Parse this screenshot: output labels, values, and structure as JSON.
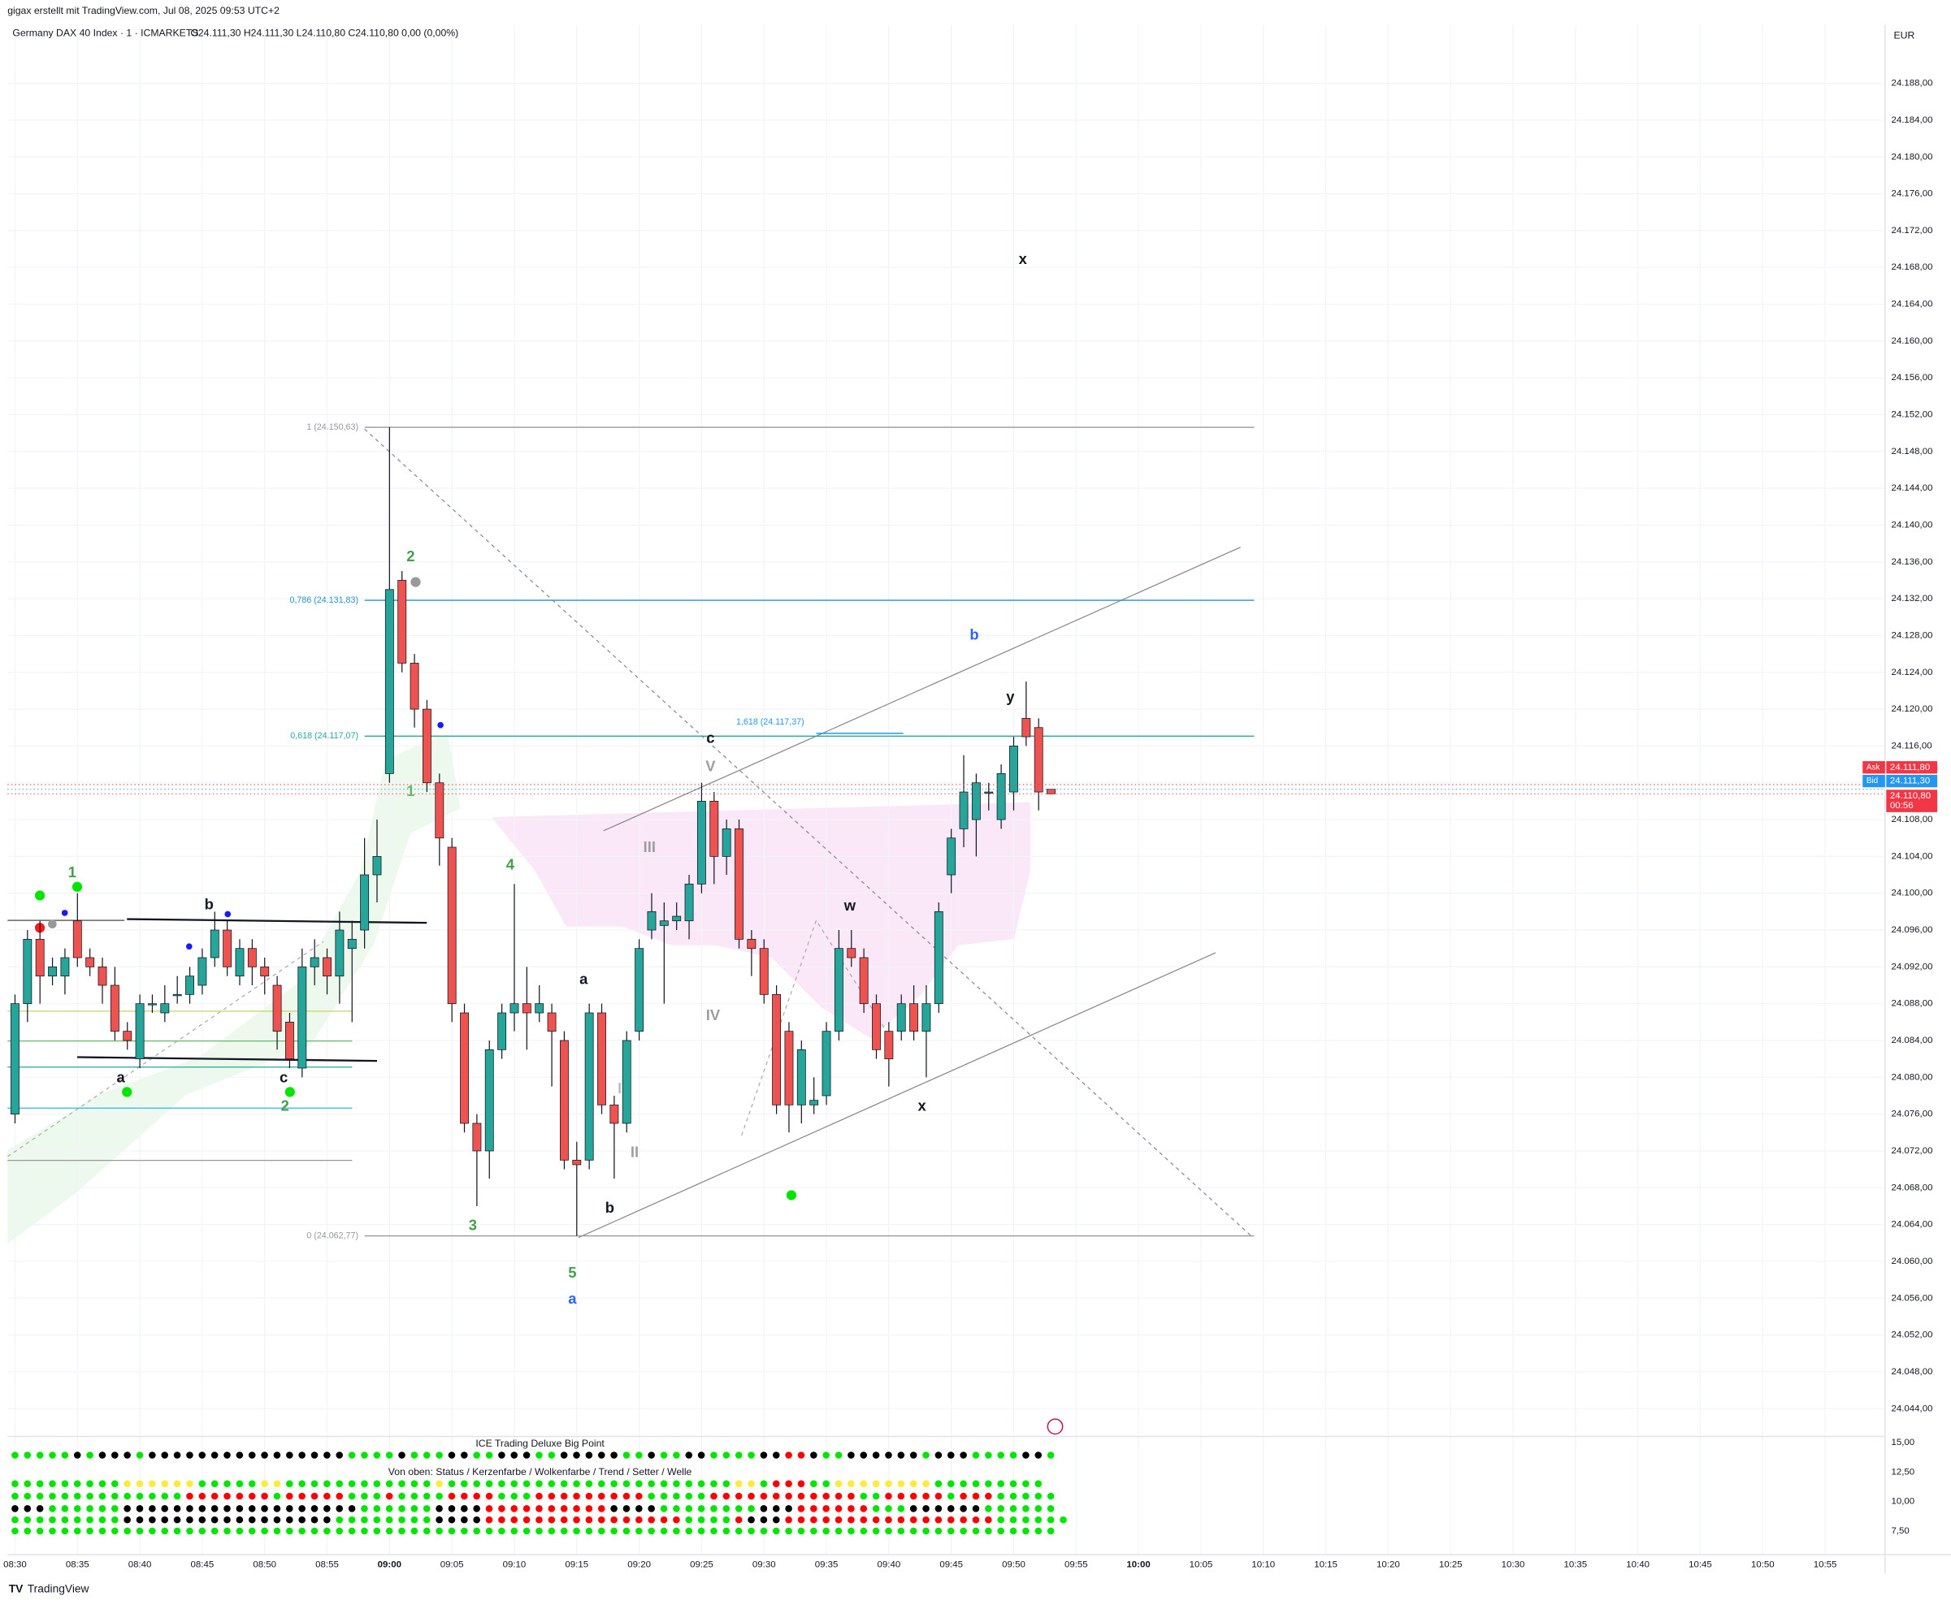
{
  "header": {
    "credit": "gigax erstellt mit TradingView.com, Jul 08, 2025 09:53 UTC+2",
    "symbol": "Germany DAX 40 Index · 1 · ICMARKETS",
    "ohlc": "O24.111,30  H24.111,30  L24.110,80  C24.110,80  0,00 (0,00%)"
  },
  "chart_data": {
    "type": "candlestick",
    "currency": "EUR",
    "up_color": "#26a69a",
    "down_color": "#ef5350",
    "x": [
      "08:30",
      "08:31",
      "08:32",
      "08:33",
      "08:34",
      "08:35",
      "08:36",
      "08:37",
      "08:38",
      "08:39",
      "08:40",
      "08:41",
      "08:42",
      "08:43",
      "08:44",
      "08:45",
      "08:46",
      "08:47",
      "08:48",
      "08:49",
      "08:50",
      "08:51",
      "08:52",
      "08:53",
      "08:54",
      "08:55",
      "08:56",
      "08:57",
      "08:58",
      "08:59",
      "09:00",
      "09:01",
      "09:02",
      "09:03",
      "09:04",
      "09:05",
      "09:06",
      "09:07",
      "09:08",
      "09:09",
      "09:10",
      "09:11",
      "09:12",
      "09:13",
      "09:14",
      "09:15",
      "09:16",
      "09:17",
      "09:18",
      "09:19",
      "09:20",
      "09:21",
      "09:22",
      "09:23",
      "09:24",
      "09:25",
      "09:26",
      "09:27",
      "09:28",
      "09:29",
      "09:30",
      "09:31",
      "09:32",
      "09:33",
      "09:34",
      "09:35",
      "09:36",
      "09:37",
      "09:38",
      "09:39",
      "09:40",
      "09:41",
      "09:42",
      "09:43",
      "09:44",
      "09:45",
      "09:46",
      "09:47",
      "09:48",
      "09:49",
      "09:50",
      "09:51",
      "09:52",
      "09:53"
    ],
    "open": [
      24076,
      24088,
      24095,
      24091,
      24091,
      24097,
      24093,
      24092,
      24090,
      24085,
      24082,
      24088,
      24087,
      24089,
      24089,
      24090,
      24093,
      24096,
      24091,
      24094,
      24092,
      24090,
      24086,
      24081,
      24092,
      24093,
      24091,
      24094,
      24096,
      24102,
      24113,
      24134,
      24125,
      24120,
      24112,
      24105,
      24087,
      24075,
      24072,
      24083,
      24087,
      24088,
      24087,
      24087,
      24084,
      24071,
      24071,
      24087,
      24077,
      24075,
      24085,
      24096,
      24096.5,
      24097,
      24097,
      24101,
      24110,
      24104,
      24107,
      24095,
      24094,
      24089,
      24085,
      24077,
      24077,
      24078,
      24085,
      24094,
      24093,
      24088,
      24085,
      24085,
      24088,
      24085,
      24088,
      24102,
      24107,
      24108,
      24111,
      24108,
      24111,
      24119,
      24118,
      24111.3
    ],
    "high": [
      24089,
      24096,
      24097,
      24093,
      24094,
      24100,
      24094,
      24093,
      24092,
      24086,
      24089,
      24089,
      24090,
      24091,
      24092,
      24094,
      24098,
      24097,
      24095,
      24095,
      24093,
      24091,
      24087,
      24094,
      24095,
      24094,
      24098,
      24097,
      24106,
      24108,
      24150.63,
      24135,
      24126,
      24121,
      24113,
      24106,
      24088,
      24076,
      24084,
      24088,
      24101,
      24092,
      24090,
      24088,
      24085,
      24073,
      24088,
      24088,
      24078,
      24085,
      24095,
      24100,
      24099,
      24099,
      24102,
      24112,
      24111,
      24108,
      24108,
      24096,
      24095,
      24090,
      24086,
      24084,
      24080,
      24086,
      24096,
      24096,
      24094,
      24089,
      24086,
      24089,
      24090,
      24090,
      24099,
      24107,
      24115,
      24113,
      24112,
      24114,
      24117,
      24123,
      24119,
      24111.3
    ],
    "low": [
      24075,
      24086,
      24088,
      24090,
      24089,
      24092,
      24091,
      24088,
      24084,
      24083,
      24081,
      24087,
      24086,
      24088,
      24088,
      24089,
      24092,
      24091,
      24090,
      24090,
      24089,
      24083,
      24081,
      24080,
      24090,
      24089,
      24088,
      24086,
      24094,
      24099,
      24112,
      24124,
      24118,
      24111,
      24103,
      24086,
      24074,
      24066,
      24069,
      24082,
      24085,
      24083,
      24086,
      24079,
      24070,
      24062.77,
      24070,
      24076,
      24069,
      24074,
      24084,
      24095,
      24088,
      24096,
      24095,
      24100,
      24101,
      24102,
      24094,
      24091,
      24088,
      24076,
      24074,
      24075,
      24076,
      24077,
      24084,
      24092,
      24087,
      24082,
      24079,
      24084,
      24084,
      24080,
      24087,
      24100,
      24105,
      24104,
      24109,
      24107,
      24109,
      24116,
      24109,
      24110.8
    ],
    "close": [
      24088,
      24095,
      24091,
      24092,
      24093,
      24093,
      24092,
      24090,
      24085,
      24084,
      24088,
      24088,
      24088,
      24089,
      24091,
      24093,
      24096,
      24092,
      24094,
      24092,
      24091,
      24085,
      24082,
      24092,
      24093,
      24091,
      24096,
      24095,
      24102,
      24104,
      24133,
      24125,
      24120,
      24112,
      24106,
      24088,
      24075,
      24072,
      24083,
      24087,
      24088,
      24087,
      24088,
      24085,
      24071,
      24070.5,
      24087,
      24077,
      24075,
      24084,
      24094,
      24098,
      24097,
      24097.5,
      24101,
      24110,
      24104,
      24107,
      24095,
      24094,
      24089,
      24077,
      24077,
      24083,
      24077.5,
      24085,
      24094,
      24093,
      24088,
      24083,
      24082,
      24088,
      24085,
      24088,
      24098,
      24106,
      24111,
      24112,
      24111,
      24113,
      24116,
      24117,
      24111,
      24110.8
    ],
    "xlim": [
      "08:29",
      "11:00"
    ],
    "xticks": [
      "08:30",
      "08:35",
      "08:40",
      "08:45",
      "08:50",
      "08:55",
      "09:00",
      "09:05",
      "09:10",
      "09:15",
      "09:20",
      "09:25",
      "09:30",
      "09:35",
      "09:40",
      "09:45",
      "09:50",
      "09:55",
      "10:00",
      "10:05",
      "10:10",
      "10:15",
      "10:20",
      "10:25",
      "10:30",
      "10:35",
      "10:40",
      "10:45",
      "10:50",
      "10:55"
    ],
    "ylim": [
      24041.65,
      24194.35
    ],
    "yticks": [
      {
        "value": 24044,
        "label": "24.044,00"
      },
      {
        "value": 24048,
        "label": "24.048,00"
      },
      {
        "value": 24052,
        "label": "24.052,00"
      },
      {
        "value": 24056,
        "label": "24.056,00"
      },
      {
        "value": 24060,
        "label": "24.060,00"
      },
      {
        "value": 24064,
        "label": "24.064,00"
      },
      {
        "value": 24068,
        "label": "24.068,00"
      },
      {
        "value": 24072,
        "label": "24.072,00"
      },
      {
        "value": 24076,
        "label": "24.076,00"
      },
      {
        "value": 24080,
        "label": "24.080,00"
      },
      {
        "value": 24084,
        "label": "24.084,00"
      },
      {
        "value": 24088,
        "label": "24.088,00"
      },
      {
        "value": 24092,
        "label": "24.092,00"
      },
      {
        "value": 24096,
        "label": "24.096,00"
      },
      {
        "value": 24100,
        "label": "24.100,00"
      },
      {
        "value": 24104,
        "label": "24.104,00"
      },
      {
        "value": 24108,
        "label": "24.108,00"
      },
      {
        "value": 24112,
        "label": "24.112,00"
      },
      {
        "value": 24116,
        "label": "24.116,00"
      },
      {
        "value": 24120,
        "label": "24.120,00"
      },
      {
        "value": 24124,
        "label": "24.124,00"
      },
      {
        "value": 24128,
        "label": "24.128,00"
      },
      {
        "value": 24132,
        "label": "24.132,00"
      },
      {
        "value": 24136,
        "label": "24.136,00"
      },
      {
        "value": 24140,
        "label": "24.140,00"
      },
      {
        "value": 24144,
        "label": "24.144,00"
      },
      {
        "value": 24148,
        "label": "24.148,00"
      },
      {
        "value": 24152,
        "label": "24.152,00"
      },
      {
        "value": 24156,
        "label": "24.156,00"
      },
      {
        "value": 24160,
        "label": "24.160,00"
      },
      {
        "value": 24164,
        "label": "24.164,00"
      },
      {
        "value": 24168,
        "label": "24.168,00"
      },
      {
        "value": 24172,
        "label": "24.172,00"
      },
      {
        "value": 24176,
        "label": "24.176,00"
      },
      {
        "value": 24180,
        "label": "24.180,00"
      },
      {
        "value": 24184,
        "label": "24.184,00"
      },
      {
        "value": 24188,
        "label": "24.188,00"
      }
    ],
    "grid": true,
    "fib_levels": [
      {
        "value": 24150.63,
        "label": "1 (24.150,63)",
        "color": "#9598a1"
      },
      {
        "value": 24131.83,
        "label": "0,786 (24.131,83)",
        "color": "#2196c8"
      },
      {
        "value": 24117.07,
        "label": "0,618 (24.117,07)",
        "color": "#22ab94"
      },
      {
        "value": 24062.77,
        "label": "0 (24.062,77)",
        "color": "#9598a1"
      }
    ],
    "extension": {
      "value": 24117.37,
      "label": "1,618 (24.117,37)",
      "color": "#2196f3"
    },
    "annotations": [
      {
        "text": "1",
        "color": "#43a047"
      },
      {
        "text": "2",
        "color": "#43a047"
      },
      {
        "text": "1",
        "color": "#66bb6a"
      },
      {
        "text": "4",
        "color": "#43a047"
      },
      {
        "text": "3",
        "color": "#43a047"
      },
      {
        "text": "5",
        "color": "#43a047"
      },
      {
        "text": "a",
        "color": "#2962ff"
      },
      {
        "text": "b",
        "color": "#2962ff"
      },
      {
        "text": "x",
        "color": "#131722"
      },
      {
        "text": "y",
        "color": "#131722"
      },
      {
        "text": "w",
        "color": "#131722"
      },
      {
        "text": "x",
        "color": "#131722"
      },
      {
        "text": "c",
        "color": "#131722"
      },
      {
        "text": "V",
        "color": "#9e9e9e"
      },
      {
        "text": "III",
        "color": "#9e9e9e"
      },
      {
        "text": "IV",
        "color": "#9e9e9e"
      },
      {
        "text": "I",
        "color": "#bdbdbd"
      },
      {
        "text": "II",
        "color": "#9e9e9e"
      },
      {
        "text": "a",
        "color": "#131722"
      },
      {
        "text": "b",
        "color": "#131722"
      },
      {
        "text": "b",
        "color": "#131722"
      },
      {
        "text": "a",
        "color": "#131722"
      },
      {
        "text": "c",
        "color": "#131722"
      },
      {
        "text": "2",
        "color": "#43a047"
      }
    ],
    "price_tags": [
      {
        "name": "Ask",
        "value": 24111.8,
        "label": "24.111,80",
        "color": "#f23645"
      },
      {
        "name": "Bid",
        "value": 24111.3,
        "label": "24.111,30",
        "color": "#2196f3"
      },
      {
        "value": 24110.8,
        "label": "24.110,80",
        "countdown": "00:56",
        "color": "#f23645"
      }
    ]
  },
  "indicator": {
    "title": "ICE Trading Deluxe Big Point",
    "subtitle": "Von oben: Status / Kerzenfarbe / Wolkenfarbe / Trend / Setter / Welle",
    "ylim": [
      5.5,
      16
    ],
    "yticks": [
      {
        "value": 7.5,
        "label": "7,50"
      },
      {
        "value": 10,
        "label": "10,00"
      },
      {
        "value": 12.5,
        "label": "12,50"
      },
      {
        "value": 15,
        "label": "15,00"
      }
    ],
    "palette": {
      "G": "#00e600",
      "B": "#000000",
      "R": "#ff0000",
      "Y": "#ffeb3b"
    },
    "rows": [
      "GGGGGBGBBBGBBBBBBBBBBBBBBBBGGGGBGGGBBGGBBBGGBBBBBGGBGGBBGGGGBBRRBGGBBBBBBGBBBGGGGBBG",
      "GGGGGGGGGYYYYYYGGGGGYYGGGGGGGGGGGGYGGGGGGGGGGGGGGGGGGGGGGGYYGRRRGGYYYYYYYYGGGGGGGGG",
      "GGGGGGGGGGGGGGRRRRRRRGRRRRRGGGRGGGGRRRRGGGRRRRRRRRRGGGGGRRRRRRRRRRRRGGRRRRRGRRRGGGGG",
      "BBBGGGGGGBBBBBBBBBBBBBBBBBBBGGGGGGBBBBRRRRRRRRRRBBBBGGGGGGGGBBBRRRRRRGGGBBBBBBGGGGGG",
      "GGGGGGGGGBBBBBBBBBBBBBBBBBGGGGGGGGBBBBRRRRRRRRRRRRRRRRGGGGRBBBRRRRRRRRRRRRRRRRRGGGGGG",
      "GGGGGGGGGGGGGGGGGGGGGGGGGGGGGGGGGGGGGGGGGGGGGGGGGGGGGGGGGGGGGGGGGGGGGGGGGGGGGGGGGGGG"
    ]
  },
  "footer": {
    "brand": "TradingView"
  }
}
